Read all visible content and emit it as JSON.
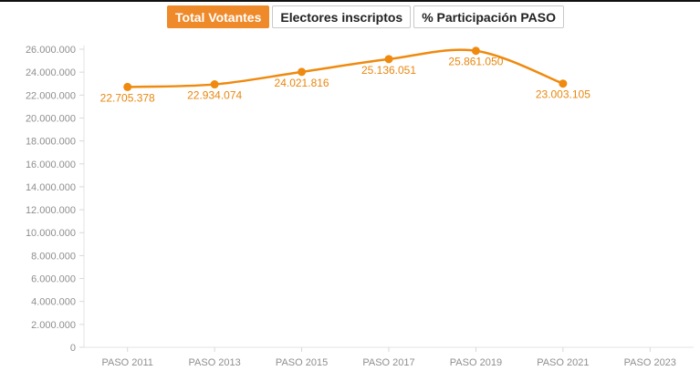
{
  "tabs": [
    {
      "label": "Total Votantes",
      "active": true
    },
    {
      "label": "Electores inscriptos",
      "active": false
    },
    {
      "label": "% Participación PASO",
      "active": false
    }
  ],
  "colors": {
    "accent": "#ef8a2a",
    "line": "#ef8a0f",
    "label": "#e8870f"
  },
  "chart_data": {
    "type": "line",
    "title": "",
    "xlabel": "",
    "ylabel": "",
    "categories": [
      "PASO 2011",
      "PASO 2013",
      "PASO 2015",
      "PASO 2017",
      "PASO 2019",
      "PASO 2021",
      "PASO 2023"
    ],
    "series": [
      {
        "values": [
          22705378,
          22934074,
          24021816,
          25136051,
          25861050,
          23003105,
          null
        ],
        "labels": [
          "22.705.378",
          "22.934.074",
          "24.021.816",
          "25.136.051",
          "25.861.050",
          "23.003.105",
          ""
        ]
      }
    ],
    "ylim": [
      0,
      26000000
    ],
    "yticks": [
      0,
      2000000,
      4000000,
      6000000,
      8000000,
      10000000,
      12000000,
      14000000,
      16000000,
      18000000,
      20000000,
      22000000,
      24000000,
      26000000
    ],
    "ytick_labels": [
      "0",
      "2.000.000",
      "4.000.000",
      "6.000.000",
      "8.000.000",
      "10.000.000",
      "12.000.000",
      "14.000.000",
      "16.000.000",
      "18.000.000",
      "20.000.000",
      "22.000.000",
      "24.000.000",
      "26.000.000"
    ],
    "grid": false,
    "legend": "none"
  }
}
